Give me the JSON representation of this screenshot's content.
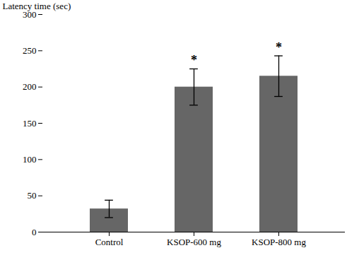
{
  "chart_data": {
    "type": "bar",
    "categories": [
      "Control",
      "KSOP-600 mg",
      "KSOP-800 mg"
    ],
    "values": [
      32,
      200,
      215
    ],
    "errors": [
      12,
      25,
      28
    ],
    "color": "#666666",
    "ylabel": "Latency time (sec)",
    "ylim": [
      0,
      300
    ],
    "yticks": [
      0,
      50,
      100,
      150,
      200,
      250,
      300
    ],
    "grid": false,
    "annotations": [
      {
        "x": "KSOP-600 mg",
        "text": "*"
      },
      {
        "x": "KSOP-800 mg",
        "text": "*"
      }
    ]
  }
}
